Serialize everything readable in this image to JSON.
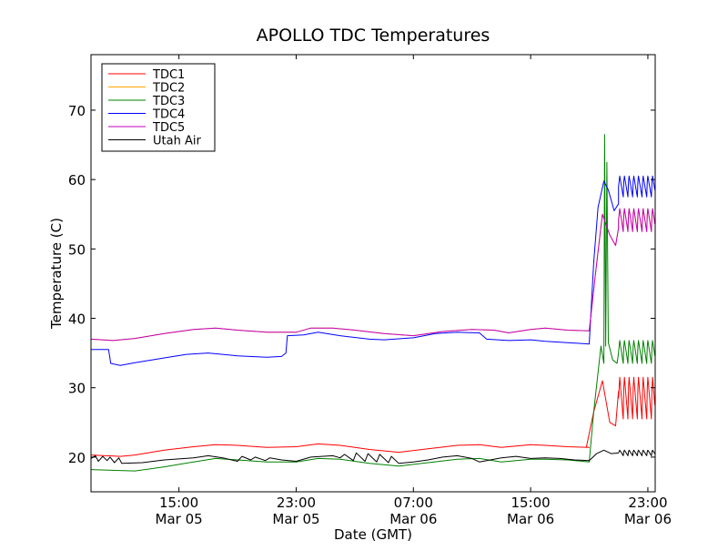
{
  "chart_data": {
    "type": "line",
    "title": "APOLLO TDC Temperatures",
    "xlabel": "Date (GMT)",
    "ylabel": "Temperature (C)",
    "x_unit": "hours since Mar 05 09:00 GMT",
    "xlim": [
      0,
      38.5
    ],
    "ylim": [
      15,
      78
    ],
    "grid": false,
    "legend_position": "upper-left",
    "x_ticks": [
      {
        "x": 6,
        "line1": "15:00",
        "line2": "Mar 05"
      },
      {
        "x": 14,
        "line1": "23:00",
        "line2": "Mar 05"
      },
      {
        "x": 22,
        "line1": "07:00",
        "line2": "Mar 06"
      },
      {
        "x": 30,
        "line1": "15:00",
        "line2": "Mar 06"
      },
      {
        "x": 38,
        "line1": "23:00",
        "line2": "Mar 06"
      }
    ],
    "y_ticks": [
      20,
      30,
      40,
      50,
      60,
      70
    ],
    "series": [
      {
        "name": "TDC1",
        "color": "#ff0000",
        "points": [
          [
            0,
            20.3
          ],
          [
            1,
            20.2
          ],
          [
            2,
            20.1
          ],
          [
            3,
            20.3
          ],
          [
            5,
            21.0
          ],
          [
            7,
            21.5
          ],
          [
            8.5,
            21.8
          ],
          [
            10,
            21.7
          ],
          [
            12,
            21.4
          ],
          [
            14,
            21.5
          ],
          [
            15.5,
            21.9
          ],
          [
            17,
            21.7
          ],
          [
            19,
            21.1
          ],
          [
            21,
            20.7
          ],
          [
            23,
            21.2
          ],
          [
            25,
            21.7
          ],
          [
            26.5,
            21.8
          ],
          [
            28,
            21.4
          ],
          [
            30,
            21.8
          ],
          [
            31,
            21.7
          ],
          [
            32.5,
            21.5
          ],
          [
            34,
            21.4
          ],
          [
            33.8,
            21.4
          ],
          [
            34.3,
            26.5
          ],
          [
            34.9,
            31.0
          ],
          [
            35.4,
            25.0
          ],
          [
            35.8,
            24.5
          ],
          [
            36.0,
            29.5
          ]
        ],
        "oscillation": {
          "start": 36.0,
          "end": 38.5,
          "low": 25.5,
          "high": 31.5,
          "period": 0.32
        }
      },
      {
        "name": "TDC2",
        "color": "#ffa500",
        "points": [
          [
            0,
            37.0
          ],
          [
            1.5,
            36.8
          ],
          [
            3,
            37.1
          ],
          [
            5,
            37.8
          ],
          [
            7,
            38.4
          ],
          [
            8.5,
            38.6
          ],
          [
            10,
            38.3
          ],
          [
            12,
            38.0
          ],
          [
            14,
            38.0
          ],
          [
            15,
            38.6
          ],
          [
            16.5,
            38.6
          ],
          [
            18,
            38.3
          ],
          [
            20,
            37.8
          ],
          [
            22,
            37.5
          ],
          [
            24,
            38.1
          ],
          [
            26,
            38.4
          ],
          [
            27.5,
            38.3
          ],
          [
            28.5,
            37.9
          ],
          [
            30,
            38.4
          ],
          [
            31,
            38.6
          ],
          [
            32.5,
            38.3
          ],
          [
            34,
            38.2
          ],
          [
            34.4,
            46.0
          ],
          [
            34.9,
            55.0
          ],
          [
            35.4,
            52.0
          ],
          [
            35.8,
            50.5
          ],
          [
            36.0,
            53.0
          ]
        ],
        "oscillation": {
          "start": 36.0,
          "end": 38.5,
          "low": 52.5,
          "high": 55.8,
          "period": 0.32
        }
      },
      {
        "name": "TDC3",
        "color": "#008000",
        "points": [
          [
            0,
            18.2
          ],
          [
            1.5,
            18.1
          ],
          [
            3,
            18.0
          ],
          [
            5,
            18.6
          ],
          [
            7,
            19.3
          ],
          [
            8.5,
            19.8
          ],
          [
            10,
            19.6
          ],
          [
            12,
            19.3
          ],
          [
            14,
            19.3
          ],
          [
            15.5,
            19.8
          ],
          [
            17,
            19.7
          ],
          [
            19,
            19.1
          ],
          [
            21,
            18.7
          ],
          [
            23,
            19.2
          ],
          [
            25,
            19.7
          ],
          [
            26.5,
            19.8
          ],
          [
            28,
            19.3
          ],
          [
            30,
            19.7
          ],
          [
            31,
            19.7
          ],
          [
            32.5,
            19.6
          ],
          [
            34,
            19.3
          ],
          [
            34.3,
            26.5
          ],
          [
            34.8,
            36.0
          ],
          [
            35.0,
            33.5
          ],
          [
            35.05,
            66.5
          ],
          [
            35.12,
            36.0
          ],
          [
            35.2,
            62.5
          ],
          [
            35.3,
            36.5
          ],
          [
            35.6,
            34.0
          ],
          [
            35.9,
            33.5
          ],
          [
            36.0,
            35.0
          ]
        ],
        "oscillation": {
          "start": 36.0,
          "end": 38.5,
          "low": 33.5,
          "high": 36.8,
          "period": 0.32
        }
      },
      {
        "name": "TDC4",
        "color": "#0000ff",
        "points": [
          [
            0,
            35.5
          ],
          [
            1.2,
            35.5
          ],
          [
            1.35,
            33.5
          ],
          [
            2,
            33.2
          ],
          [
            3,
            33.6
          ],
          [
            5,
            34.3
          ],
          [
            6.5,
            34.8
          ],
          [
            8,
            35.0
          ],
          [
            10,
            34.6
          ],
          [
            12,
            34.4
          ],
          [
            13,
            34.5
          ],
          [
            13.3,
            35.0
          ],
          [
            13.4,
            37.5
          ],
          [
            14.5,
            37.6
          ],
          [
            15.5,
            38.0
          ],
          [
            17,
            37.5
          ],
          [
            19,
            37.0
          ],
          [
            20,
            36.9
          ],
          [
            22,
            37.2
          ],
          [
            23.5,
            37.8
          ],
          [
            25,
            38.0
          ],
          [
            26.5,
            37.9
          ],
          [
            27,
            37.0
          ],
          [
            28.5,
            36.8
          ],
          [
            30,
            36.9
          ],
          [
            31,
            36.7
          ],
          [
            32.5,
            36.5
          ],
          [
            34,
            36.3
          ],
          [
            34.3,
            48.0
          ],
          [
            34.6,
            56.0
          ],
          [
            35.0,
            59.8
          ],
          [
            35.3,
            58.5
          ],
          [
            35.7,
            55.5
          ],
          [
            36.0,
            56.5
          ]
        ],
        "oscillation": {
          "start": 36.0,
          "end": 38.5,
          "low": 57.5,
          "high": 60.5,
          "period": 0.32
        }
      },
      {
        "name": "TDC5",
        "color": "#bf00bf",
        "points": [
          [
            0,
            37.0
          ],
          [
            1.5,
            36.8
          ],
          [
            3,
            37.1
          ],
          [
            5,
            37.8
          ],
          [
            7,
            38.4
          ],
          [
            8.5,
            38.6
          ],
          [
            10,
            38.3
          ],
          [
            12,
            38.0
          ],
          [
            14,
            38.0
          ],
          [
            15,
            38.6
          ],
          [
            16.5,
            38.6
          ],
          [
            18,
            38.3
          ],
          [
            20,
            37.8
          ],
          [
            22,
            37.5
          ],
          [
            24,
            38.1
          ],
          [
            26,
            38.4
          ],
          [
            27.5,
            38.3
          ],
          [
            28.5,
            37.9
          ],
          [
            30,
            38.4
          ],
          [
            31,
            38.6
          ],
          [
            32.5,
            38.3
          ],
          [
            34,
            38.2
          ],
          [
            34.4,
            46.0
          ],
          [
            34.9,
            55.0
          ],
          [
            35.4,
            52.0
          ],
          [
            35.8,
            50.5
          ],
          [
            36.0,
            53.0
          ]
        ],
        "oscillation": {
          "start": 36.0,
          "end": 38.5,
          "low": 52.5,
          "high": 55.8,
          "period": 0.32
        }
      },
      {
        "name": "Utah Air",
        "color": "#000000",
        "points": [
          [
            0,
            19.8
          ],
          [
            0.3,
            20.2
          ],
          [
            0.5,
            19.4
          ],
          [
            0.8,
            20.1
          ],
          [
            1.1,
            19.5
          ],
          [
            1.3,
            20.0
          ],
          [
            1.6,
            19.2
          ],
          [
            1.9,
            19.9
          ],
          [
            2.1,
            19.1
          ],
          [
            3.5,
            19.2
          ],
          [
            5,
            19.6
          ],
          [
            7,
            19.9
          ],
          [
            8,
            20.2
          ],
          [
            9,
            19.9
          ],
          [
            10,
            19.4
          ],
          [
            10.3,
            20.1
          ],
          [
            10.9,
            19.6
          ],
          [
            11.2,
            20.0
          ],
          [
            11.9,
            19.5
          ],
          [
            12.2,
            19.9
          ],
          [
            13,
            19.6
          ],
          [
            14,
            19.4
          ],
          [
            15,
            20.0
          ],
          [
            16.5,
            20.2
          ],
          [
            17,
            19.9
          ],
          [
            17.3,
            20.4
          ],
          [
            17.9,
            19.5
          ],
          [
            18.1,
            20.6
          ],
          [
            18.7,
            19.4
          ],
          [
            18.9,
            20.5
          ],
          [
            19.5,
            19.3
          ],
          [
            19.7,
            20.4
          ],
          [
            20.3,
            19.2
          ],
          [
            20.5,
            20.1
          ],
          [
            21,
            19.1
          ],
          [
            22,
            19.3
          ],
          [
            23,
            19.6
          ],
          [
            24,
            20.0
          ],
          [
            25,
            20.2
          ],
          [
            26,
            19.8
          ],
          [
            26.5,
            19.3
          ],
          [
            27,
            19.5
          ],
          [
            28,
            19.9
          ],
          [
            29,
            20.1
          ],
          [
            30,
            19.8
          ],
          [
            31,
            19.9
          ],
          [
            32,
            19.8
          ],
          [
            33,
            19.6
          ],
          [
            34,
            19.5
          ],
          [
            34.5,
            20.5
          ],
          [
            35.0,
            21.0
          ],
          [
            35.5,
            20.5
          ],
          [
            36.0,
            20.6
          ]
        ],
        "oscillation": {
          "start": 36.0,
          "end": 38.5,
          "low": 20.2,
          "high": 21.0,
          "period": 0.32
        }
      }
    ]
  }
}
